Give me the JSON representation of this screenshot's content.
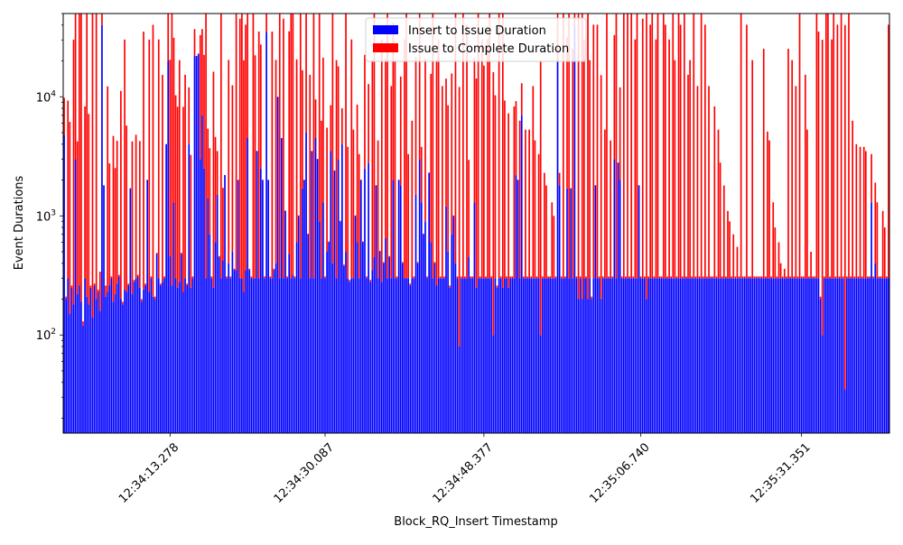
{
  "chart_data": {
    "type": "bar",
    "stacked": true,
    "xlabel": "Block_RQ_Insert Timestamp",
    "ylabel": "Event Durations",
    "yscale": "log",
    "ylim": [
      15,
      50000
    ],
    "y_ticks": [
      {
        "value": 100,
        "base": "10",
        "exp": "2"
      },
      {
        "value": 1000,
        "base": "10",
        "exp": "3"
      },
      {
        "value": 10000,
        "base": "10",
        "exp": "4"
      }
    ],
    "x_tick_labels": [
      "12:34:13.278",
      "12:34:30.087",
      "12:34:48.377",
      "12:35:06.740",
      "12:35:31.351"
    ],
    "x_tick_indices": [
      56,
      138,
      222,
      305,
      390
    ],
    "legend_position": "upper center",
    "series": [
      {
        "name": "Insert to Issue Duration",
        "color": "#0000ff",
        "values": [
          4800,
          200,
          300,
          150,
          250,
          180,
          3000,
          220,
          260,
          190,
          120,
          300,
          210,
          180,
          250,
          140,
          260,
          200,
          230,
          160,
          40000,
          1800,
          210,
          230,
          260,
          300,
          190,
          220,
          270,
          310,
          200,
          180,
          240,
          230,
          260,
          1700,
          220,
          280,
          300,
          310,
          250,
          190,
          240,
          260,
          2000,
          230,
          300,
          210,
          200,
          480,
          300,
          260,
          280,
          300,
          4000,
          20000,
          460,
          260,
          1300,
          300,
          250,
          280,
          480,
          230,
          300,
          260,
          4000,
          250,
          300,
          22000,
          22000,
          23000,
          3000,
          7000,
          2500,
          300,
          1400,
          700,
          300,
          250,
          600,
          1500,
          450,
          300,
          420,
          2200,
          300,
          400,
          300,
          500,
          350,
          350,
          2000,
          300,
          300,
          230,
          350,
          4500,
          350,
          300,
          300,
          300,
          3500,
          300,
          2500,
          2000,
          300,
          35000,
          2000,
          300,
          300,
          350,
          400,
          10000,
          300,
          4500,
          300,
          1100,
          300,
          480,
          300,
          320,
          300,
          600,
          1000,
          300,
          1700,
          2000,
          5000,
          700,
          300,
          3500,
          300,
          4500,
          3000,
          900,
          300,
          1300,
          300,
          500,
          600,
          3500,
          400,
          2400,
          300,
          3000,
          900,
          4000,
          380,
          500,
          300,
          280,
          300,
          300,
          1000,
          600,
          300,
          2000,
          600,
          2500,
          300,
          2800,
          280,
          350,
          450,
          1800,
          300,
          500,
          280,
          400,
          650,
          300,
          450,
          300,
          2000,
          300,
          300,
          2000,
          1800,
          400,
          300,
          300,
          300,
          260,
          300,
          300,
          1500,
          400,
          3000,
          1300,
          700,
          900,
          300,
          2300,
          600,
          300,
          400,
          260,
          300,
          300,
          300,
          300,
          1200,
          500,
          250,
          700,
          1000,
          400,
          300,
          80,
          300,
          300,
          300,
          300,
          450,
          300,
          300,
          1300,
          250,
          300,
          300,
          300,
          300,
          300,
          300,
          300,
          300,
          100,
          300,
          250,
          300,
          300,
          250,
          300,
          300,
          250,
          300,
          300,
          300,
          2200,
          2000,
          300,
          7000,
          300,
          300,
          300,
          300,
          300,
          300,
          300,
          300,
          300,
          100,
          300,
          300,
          300,
          300,
          300,
          300,
          300,
          300,
          20000,
          1800,
          300,
          300,
          300,
          1700,
          300,
          1700,
          300,
          40000,
          300,
          200,
          300,
          200,
          300,
          300,
          200,
          300,
          200,
          300,
          1800,
          300,
          300,
          200,
          300,
          300,
          300,
          300,
          300,
          300,
          3000,
          300,
          2800,
          2000,
          300,
          300,
          300,
          300,
          300,
          300,
          300,
          300,
          300,
          1800,
          300,
          300,
          300,
          200,
          300,
          300,
          300,
          300,
          300,
          300,
          300,
          300,
          300,
          300,
          300,
          300,
          300,
          300,
          300,
          300,
          300,
          300,
          300,
          300,
          300,
          300,
          300,
          300,
          300,
          300,
          300,
          300,
          300,
          300,
          300,
          300,
          300,
          300,
          300,
          300,
          300,
          300,
          300,
          300,
          300,
          300,
          300,
          300,
          300,
          300,
          300,
          300,
          300,
          300,
          300,
          300,
          300,
          300,
          300,
          300,
          300,
          300,
          300,
          300,
          300,
          300,
          300,
          300,
          300,
          300,
          300,
          300,
          300,
          300,
          300,
          300,
          300,
          300,
          300,
          300,
          300,
          300,
          300,
          300,
          300,
          300,
          300,
          300,
          300,
          300,
          300,
          300,
          300,
          300,
          300,
          200,
          100,
          300,
          300,
          300,
          300,
          300,
          300,
          300,
          300,
          300,
          300,
          300,
          35,
          300,
          300,
          300,
          300,
          300,
          300,
          300,
          300,
          300,
          300,
          300,
          300,
          300,
          1300,
          300,
          400,
          300,
          300,
          300,
          300,
          300,
          300,
          300
        ]
      },
      {
        "name": "Issue to Complete Duration",
        "color": "#ff0000",
        "values": [
          5000,
          10,
          9000,
          6000,
          10,
          30000,
          50000,
          4000,
          50000,
          50000,
          10,
          8000,
          50000,
          7000,
          10,
          50000,
          10,
          50000,
          10,
          180,
          11000,
          10,
          50,
          12000,
          2500,
          10,
          4500,
          2300,
          4000,
          10,
          11000,
          10,
          30000,
          5500,
          10,
          10,
          4000,
          10,
          4500,
          10,
          4000,
          10,
          35000,
          10,
          10,
          30000,
          10,
          40000,
          10,
          10,
          30000,
          10,
          15000,
          10,
          10,
          35000,
          20000,
          50000,
          30000,
          10000,
          8000,
          20000,
          10,
          8000,
          15000,
          10,
          8000,
          3000,
          10,
          15000,
          10,
          10,
          30000,
          30000,
          20000,
          50000,
          4000,
          3000,
          10,
          16000,
          4000,
          2000,
          10,
          50000,
          1300,
          10,
          10,
          20000,
          10,
          12000,
          10,
          50000,
          10,
          45000,
          50000,
          20000,
          40000,
          50000,
          10,
          10,
          50000,
          22000,
          10,
          35000,
          25000,
          10,
          10,
          20000,
          10,
          10,
          35000,
          10,
          20000,
          10,
          50000,
          10,
          45000,
          10,
          10,
          35000,
          50000,
          50000,
          10,
          20000,
          10,
          50000,
          15000,
          10,
          50000,
          10,
          15000,
          10,
          50000,
          5000,
          10,
          50000,
          6000,
          20000,
          10,
          5000,
          10,
          5000,
          50000,
          10,
          20000,
          15000,
          10,
          4000,
          10,
          50000,
          3500,
          10,
          30000,
          5000,
          10,
          8000,
          3000,
          10,
          10,
          20000,
          10,
          10000,
          10,
          20000,
          50000,
          10,
          4000,
          10,
          30000,
          10,
          20000,
          50000,
          10,
          12000,
          40000,
          20000,
          10,
          10,
          13000,
          10,
          30000,
          50000,
          3000,
          10,
          6000,
          10,
          20000,
          10,
          50000,
          2500,
          10,
          20000,
          10,
          10,
          15000,
          50000,
          10,
          20000,
          30000,
          10,
          12000,
          10,
          13000,
          8000,
          10,
          15000,
          10,
          50000,
          10,
          12000,
          10,
          50000,
          10,
          40000,
          2500,
          10,
          10,
          20000,
          14000,
          50000,
          10,
          30000,
          18000,
          10,
          30000,
          50000,
          10,
          16000,
          10000,
          10,
          50000,
          10,
          50000,
          9000,
          10,
          7000,
          10,
          10,
          8000,
          7000,
          10,
          6000,
          6000,
          10,
          5000,
          10,
          5000,
          10,
          12000,
          4000,
          10,
          3000,
          20000,
          10,
          2000,
          1500,
          10,
          10,
          1000,
          700,
          10,
          50000,
          500,
          10,
          50000,
          10,
          30000,
          50000,
          10,
          25000,
          20000,
          10,
          50000,
          10,
          50000,
          30000,
          10,
          50000,
          20000,
          10,
          40000,
          10,
          40000,
          10,
          15000,
          10,
          5000,
          50000,
          10,
          4000,
          10,
          30000,
          50000,
          10,
          10000,
          10,
          50000,
          10,
          50000,
          10,
          50000,
          10,
          30000,
          50000,
          10,
          10,
          45000,
          10,
          50000,
          10,
          40000,
          50000,
          10,
          30000,
          50000,
          10,
          10,
          50000,
          40000,
          10,
          30000,
          10,
          50000,
          20000,
          10,
          50000,
          40000,
          10,
          50000,
          10,
          15000,
          20000,
          10,
          50000,
          10,
          12000,
          10,
          50000,
          10,
          40000,
          10,
          12000,
          10,
          10,
          8000,
          10,
          5000,
          2500,
          10,
          1500,
          10,
          800,
          600,
          10,
          400,
          10,
          250,
          10,
          50000,
          10,
          10,
          40000,
          10,
          10,
          20000,
          10,
          10,
          10,
          10,
          10,
          25000,
          10,
          4800,
          4000,
          10,
          1000,
          500,
          10,
          300,
          100,
          10,
          60,
          10,
          25000,
          10,
          20000,
          10,
          12000,
          10,
          50000,
          10,
          10,
          15000,
          5000,
          10,
          200,
          10,
          10,
          50000,
          35000,
          10,
          30000,
          10,
          50000,
          50000,
          10,
          30000,
          50000,
          10,
          40000,
          10,
          50000,
          10,
          40000,
          10,
          50000,
          10,
          6000,
          10,
          3700,
          10,
          3500,
          10,
          3500,
          3200,
          10,
          10,
          2000,
          10,
          1500,
          1000,
          10,
          10,
          800,
          500,
          10,
          40000
        ]
      }
    ]
  }
}
